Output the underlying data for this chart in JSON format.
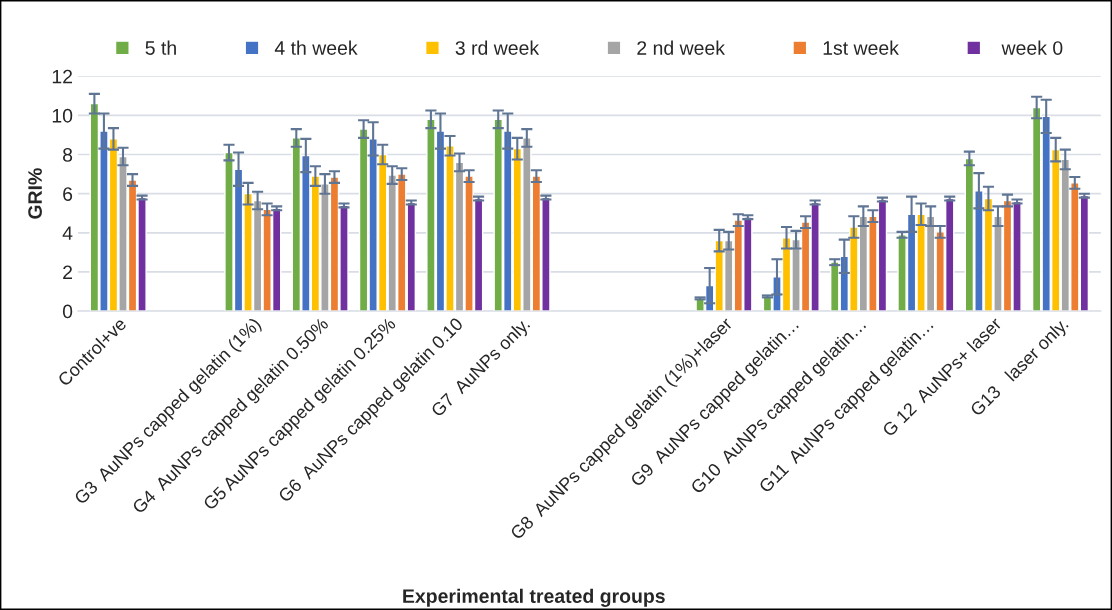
{
  "chart_data": {
    "type": "bar",
    "xlabel": "Experimental treated groups",
    "ylabel": "GRI%",
    "categories": [
      "Control+ve",
      null,
      "G3  AuNPs capped gelatin (1%)",
      "G4  AuNPs capped gelatin 0.50%",
      "G5 AuNPs capped gelatin 0.25%",
      "G6  AuNPs capped gelatin 0.10",
      "G7  AuNPs only.",
      null,
      null,
      "G8  AuNPs capped gelatin (1%)+laser",
      "G9  AuNPs capped gelatin…",
      "G10  AuNPs capped gelatin…",
      "G11  AuNPs capped gelatin…",
      "G 12  AuNPs+ laser",
      "G13   laser only."
    ],
    "series": [
      {
        "name": "5 th",
        "color": "#70ad47",
        "values": [
          10.6,
          null,
          8.1,
          8.85,
          9.3,
          9.8,
          9.8,
          null,
          null,
          0.65,
          0.75,
          2.5,
          3.9,
          7.8,
          10.4
        ],
        "errors": [
          0.5,
          null,
          0.4,
          0.45,
          0.45,
          0.45,
          0.45,
          null,
          null,
          0.05,
          0.05,
          0.15,
          0.15,
          0.35,
          0.55
        ]
      },
      {
        "name": "4 th week",
        "color": "#4472c4",
        "values": [
          9.2,
          null,
          7.25,
          7.95,
          8.8,
          9.2,
          9.2,
          null,
          null,
          1.3,
          1.75,
          2.8,
          4.95,
          6.15,
          9.95
        ],
        "errors": [
          0.9,
          null,
          0.85,
          0.85,
          0.85,
          0.9,
          0.9,
          null,
          null,
          0.9,
          0.9,
          0.85,
          0.9,
          0.9,
          0.85
        ]
      },
      {
        "name": "3 rd week",
        "color": "#ffc000",
        "values": [
          8.8,
          null,
          6.0,
          6.9,
          8.0,
          8.45,
          8.3,
          null,
          null,
          3.6,
          3.75,
          4.3,
          4.95,
          5.75,
          8.25
        ],
        "errors": [
          0.55,
          null,
          0.55,
          0.5,
          0.5,
          0.5,
          0.55,
          null,
          null,
          0.55,
          0.55,
          0.55,
          0.55,
          0.6,
          0.6
        ]
      },
      {
        "name": "2 nd week",
        "color": "#a5a5a5",
        "values": [
          7.9,
          null,
          5.65,
          6.5,
          6.95,
          7.6,
          8.85,
          null,
          null,
          3.6,
          3.65,
          4.85,
          4.85,
          4.85,
          7.75
        ],
        "errors": [
          0.45,
          null,
          0.45,
          0.5,
          0.45,
          0.45,
          0.45,
          null,
          null,
          0.45,
          0.45,
          0.5,
          0.5,
          0.5,
          0.5
        ]
      },
      {
        "name": "1st week",
        "color": "#ed7d31",
        "values": [
          6.7,
          null,
          5.2,
          6.85,
          7.0,
          6.9,
          6.9,
          null,
          null,
          4.65,
          4.55,
          4.85,
          4.05,
          5.65,
          6.55
        ],
        "errors": [
          0.3,
          null,
          0.3,
          0.3,
          0.3,
          0.3,
          0.3,
          null,
          null,
          0.3,
          0.3,
          0.3,
          0.3,
          0.3,
          0.3
        ]
      },
      {
        "name": " week 0",
        "color": "#7030a0",
        "values": [
          5.8,
          null,
          5.25,
          5.4,
          5.55,
          5.75,
          5.8,
          null,
          null,
          4.8,
          5.55,
          5.7,
          5.75,
          5.6,
          5.9
        ],
        "errors": [
          0.1,
          null,
          0.1,
          0.1,
          0.1,
          0.1,
          0.1,
          null,
          null,
          0.1,
          0.1,
          0.1,
          0.1,
          0.1,
          0.1
        ]
      }
    ],
    "ylim": [
      0,
      12
    ],
    "yticks": [
      0,
      2,
      4,
      6,
      8,
      10,
      12
    ],
    "grid": "y",
    "legend": "top"
  }
}
